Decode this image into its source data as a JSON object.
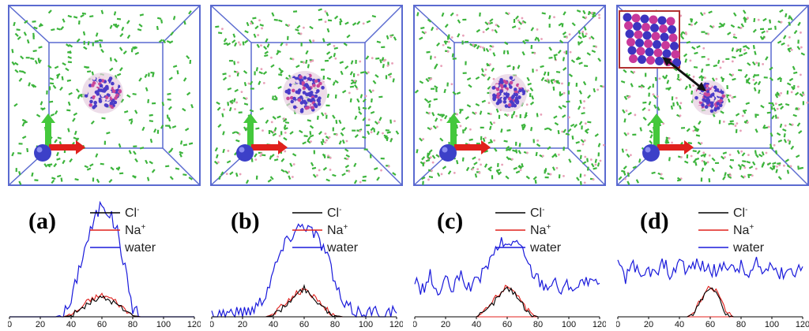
{
  "figure": {
    "panels": [
      {
        "label": "(a)",
        "has_inset": false
      },
      {
        "label": "(b)",
        "has_inset": false
      },
      {
        "label": "(c)",
        "has_inset": false
      },
      {
        "label": "(d)",
        "has_inset": true
      }
    ],
    "legend": {
      "cl": {
        "base": "Cl",
        "sup": "-"
      },
      "na": {
        "base": "Na",
        "sup": "+"
      },
      "water": "water"
    },
    "colors": {
      "cl": "#000000",
      "na": "#e0201c",
      "water": "#1a1adb",
      "box": "#5a6ad0",
      "axis_red": "#e0201c"
    }
  },
  "chart_data": [
    {
      "type": "line",
      "title": "",
      "panel": "(a)",
      "xlabel": "",
      "ylabel": "",
      "x": [
        0,
        5,
        10,
        15,
        20,
        25,
        30,
        35,
        40,
        45,
        50,
        55,
        60,
        65,
        70,
        75,
        80,
        85,
        90,
        95,
        100,
        105,
        110,
        115,
        120
      ],
      "xlim": [
        0,
        120
      ],
      "xticks": [
        0,
        20,
        40,
        60,
        80,
        100,
        120
      ],
      "ylim": [
        0,
        100
      ],
      "series": [
        {
          "name": "water",
          "values": [
            0,
            0,
            0,
            0,
            0,
            0,
            0,
            2,
            12,
            40,
            62,
            80,
            96,
            86,
            72,
            40,
            8,
            0,
            0,
            0,
            0,
            0,
            0,
            0,
            0
          ]
        },
        {
          "name": "Na+",
          "values": [
            0,
            0,
            0,
            0,
            0,
            0,
            0,
            0,
            2,
            6,
            12,
            16,
            18,
            16,
            12,
            6,
            1,
            0,
            0,
            0,
            0,
            0,
            0,
            0,
            0
          ]
        },
        {
          "name": "Cl-",
          "values": [
            0,
            0,
            0,
            0,
            0,
            0,
            0,
            0,
            1,
            5,
            10,
            14,
            16,
            14,
            10,
            5,
            1,
            0,
            0,
            0,
            0,
            0,
            0,
            0,
            0
          ]
        }
      ]
    },
    {
      "type": "line",
      "title": "",
      "panel": "(b)",
      "xlabel": "",
      "ylabel": "",
      "x": [
        0,
        5,
        10,
        15,
        20,
        25,
        30,
        35,
        40,
        45,
        50,
        55,
        60,
        65,
        70,
        75,
        80,
        85,
        90,
        95,
        100,
        105,
        110,
        115,
        120
      ],
      "xlim": [
        0,
        120
      ],
      "xticks": [
        0,
        20,
        40,
        60,
        80,
        100,
        120
      ],
      "ylim": [
        0,
        100
      ],
      "series": [
        {
          "name": "water",
          "values": [
            2,
            3,
            4,
            3,
            4,
            6,
            10,
            20,
            38,
            55,
            66,
            74,
            78,
            72,
            64,
            52,
            28,
            10,
            6,
            4,
            5,
            4,
            3,
            4,
            3
          ]
        },
        {
          "name": "Na+",
          "values": [
            0,
            0,
            0,
            0,
            0,
            0,
            0,
            0,
            2,
            8,
            14,
            20,
            22,
            18,
            14,
            6,
            1,
            0,
            0,
            0,
            0,
            0,
            0,
            0,
            0
          ]
        },
        {
          "name": "Cl-",
          "values": [
            0,
            0,
            0,
            0,
            0,
            0,
            0,
            0,
            1,
            6,
            12,
            18,
            24,
            16,
            12,
            5,
            1,
            0,
            0,
            0,
            0,
            0,
            0,
            0,
            0
          ]
        }
      ]
    },
    {
      "type": "line",
      "title": "",
      "panel": "(c)",
      "xlabel": "",
      "ylabel": "",
      "x": [
        0,
        5,
        10,
        15,
        20,
        25,
        30,
        35,
        40,
        45,
        50,
        55,
        60,
        65,
        70,
        75,
        80,
        85,
        90,
        95,
        100,
        105,
        110,
        115,
        120
      ],
      "xlim": [
        0,
        120
      ],
      "xticks": [
        0,
        20,
        40,
        60,
        80,
        100,
        120
      ],
      "ylim": [
        0,
        100
      ],
      "series": [
        {
          "name": "water",
          "values": [
            30,
            22,
            34,
            18,
            30,
            22,
            36,
            24,
            28,
            40,
            48,
            62,
            58,
            66,
            54,
            40,
            32,
            26,
            30,
            22,
            28,
            24,
            30,
            26,
            28
          ]
        },
        {
          "name": "Na+",
          "values": [
            0,
            0,
            0,
            0,
            0,
            0,
            0,
            0,
            0,
            4,
            12,
            20,
            26,
            22,
            12,
            2,
            0,
            0,
            0,
            0,
            0,
            0,
            0,
            0,
            0
          ]
        },
        {
          "name": "Cl-",
          "values": [
            0,
            0,
            0,
            0,
            0,
            0,
            0,
            0,
            0,
            3,
            10,
            18,
            24,
            20,
            10,
            2,
            0,
            0,
            0,
            0,
            0,
            0,
            0,
            0,
            0
          ]
        }
      ]
    },
    {
      "type": "line",
      "title": "",
      "panel": "(d)",
      "xlabel": "",
      "ylabel": "",
      "x": [
        0,
        5,
        10,
        15,
        20,
        25,
        30,
        35,
        40,
        45,
        50,
        55,
        60,
        65,
        70,
        75,
        80,
        85,
        90,
        95,
        100,
        105,
        110,
        115,
        120
      ],
      "xlim": [
        0,
        120
      ],
      "xticks": [
        0,
        20,
        40,
        60,
        80,
        100,
        120
      ],
      "ylim": [
        0,
        100
      ],
      "series": [
        {
          "name": "water",
          "values": [
            44,
            30,
            48,
            28,
            40,
            34,
            46,
            32,
            50,
            38,
            44,
            42,
            40,
            36,
            46,
            38,
            42,
            32,
            44,
            36,
            48,
            34,
            40,
            38,
            42
          ]
        },
        {
          "name": "Na+",
          "values": [
            0,
            0,
            0,
            0,
            0,
            0,
            0,
            0,
            0,
            0,
            4,
            18,
            26,
            20,
            4,
            0,
            0,
            0,
            0,
            0,
            0,
            0,
            0,
            0,
            0
          ]
        },
        {
          "name": "Cl-",
          "values": [
            0,
            0,
            0,
            0,
            0,
            0,
            0,
            0,
            0,
            0,
            3,
            16,
            24,
            18,
            3,
            0,
            0,
            0,
            0,
            0,
            0,
            0,
            0,
            0,
            0
          ]
        }
      ]
    }
  ]
}
